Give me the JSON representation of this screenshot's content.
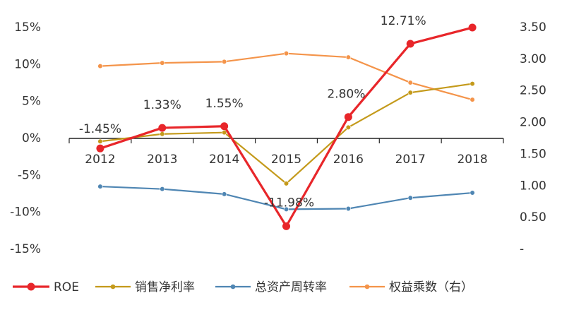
{
  "chart_data": {
    "type": "line",
    "categories": [
      "2012",
      "2013",
      "2014",
      "2015",
      "2016",
      "2017",
      "2018"
    ],
    "left_axis": {
      "ticks": [
        "15%",
        "10%",
        "5%",
        "0%",
        "-5%",
        "-10%",
        "-15%"
      ],
      "tick_values": [
        15,
        10,
        5,
        0,
        -5,
        -10,
        -15
      ],
      "ylim": [
        -15,
        15
      ]
    },
    "right_axis": {
      "ticks": [
        "3.50",
        "3.00",
        "2.50",
        "2.00",
        "1.50",
        "1.00",
        "0.50",
        "-"
      ],
      "tick_values": [
        3.5,
        3.0,
        2.5,
        2.0,
        1.5,
        1.0,
        0.5,
        0.0
      ],
      "ylim": [
        0,
        3.5
      ]
    },
    "series": [
      {
        "name": "ROE",
        "axis": "left",
        "color": "#e8262a",
        "values": [
          -1.45,
          1.33,
          1.55,
          -11.98,
          2.8,
          12.71,
          14.9
        ],
        "data_labels": [
          "-1.45%",
          "1.33%",
          "1.55%",
          "-11.98%",
          "2.80%",
          "12.71%",
          ""
        ]
      },
      {
        "name": "销售净利率",
        "axis": "left",
        "color": "#c49a1b",
        "values": [
          -0.5,
          0.5,
          0.7,
          -6.2,
          1.4,
          6.1,
          7.3
        ]
      },
      {
        "name": "总资产周转率",
        "axis": "right",
        "color": "#4f86b3",
        "values": [
          0.98,
          0.94,
          0.86,
          0.62,
          0.63,
          0.8,
          0.88
        ]
      },
      {
        "name": "权益乘数（右）",
        "axis": "right",
        "color": "#f4944a",
        "values": [
          2.88,
          2.93,
          2.95,
          3.08,
          3.02,
          2.62,
          2.35
        ]
      }
    ]
  }
}
